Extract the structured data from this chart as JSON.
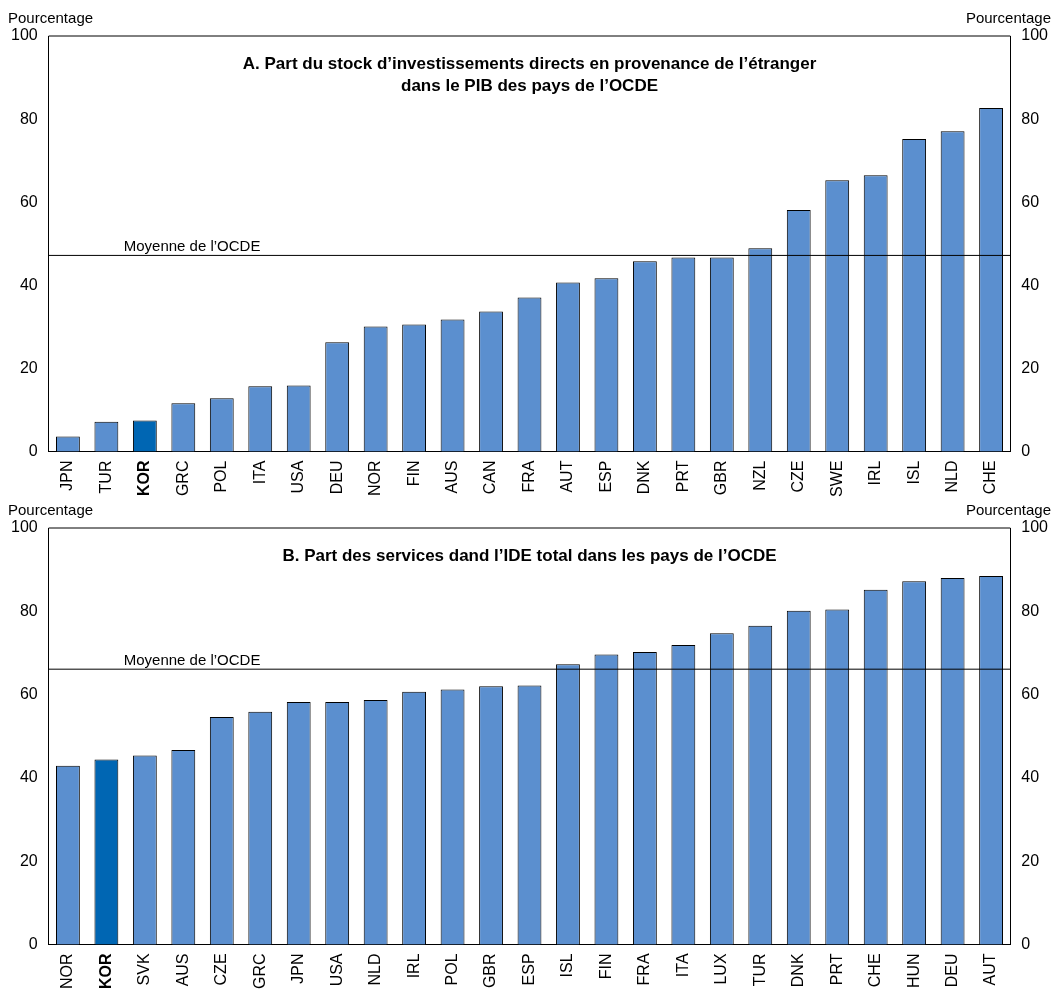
{
  "chart_data": [
    {
      "type": "bar",
      "title": "A. Part du stock d’investissements directs en provenance de l’étranger dans le PIB des pays de l’OCDE",
      "ylabel": "Pourcentage",
      "y2label": "Pourcentage",
      "categories": [
        "JPN",
        "TUR",
        "KOR",
        "GRC",
        "POL",
        "ITA",
        "USA",
        "DEU",
        "NOR",
        "FIN",
        "AUS",
        "CAN",
        "FRA",
        "AUT",
        "ESP",
        "DNK",
        "PRT",
        "GBR",
        "NZL",
        "CZE",
        "SWE",
        "IRL",
        "ISL",
        "NLD",
        "CHE"
      ],
      "values": [
        3.6,
        7.2,
        7.5,
        11.6,
        12.8,
        15.7,
        15.9,
        26.3,
        30.1,
        30.6,
        31.8,
        33.7,
        37.1,
        40.7,
        41.7,
        45.8,
        46.7,
        46.7,
        48.9,
        58.1,
        65.3,
        66.5,
        75.2,
        77.1,
        82.7
      ],
      "colors": [
        "#5b8fcf",
        "#5b8fcf",
        "#0066b3",
        "#5b8fcf",
        "#5b8fcf",
        "#5b8fcf",
        "#5b8fcf",
        "#5b8fcf",
        "#5b8fcf",
        "#5b8fcf",
        "#5b8fcf",
        "#5b8fcf",
        "#5b8fcf",
        "#5b8fcf",
        "#5b8fcf",
        "#5b8fcf",
        "#5b8fcf",
        "#5b8fcf",
        "#5b8fcf",
        "#5b8fcf",
        "#5b8fcf",
        "#5b8fcf",
        "#5b8fcf",
        "#5b8fcf",
        "#5b8fcf"
      ],
      "ylim": [
        0,
        100
      ],
      "yticks": [
        0,
        20,
        40,
        60,
        80,
        100
      ],
      "y2lim": [
        0,
        100
      ],
      "y2ticks": [
        0,
        20,
        40,
        60,
        80,
        100
      ],
      "ref_lines": [
        {
          "axis": "y",
          "value": 47.2,
          "label": "Moyenne de l’OCDE",
          "color": "#000000"
        }
      ]
    },
    {
      "type": "bar",
      "title": "B. Part des services dand l’IDE total dans les pays de l’OCDE",
      "ylabel": "Pourcentage",
      "y2label": "Pourcentage",
      "categories": [
        "NOR",
        "KOR",
        "SVK",
        "AUS",
        "CZE",
        "GRC",
        "JPN",
        "USA",
        "NLD",
        "IRL",
        "POL",
        "GBR",
        "ESP",
        "ISL",
        "FIN",
        "FRA",
        "ITA",
        "LUX",
        "TUR",
        "DNK",
        "PRT",
        "CHE",
        "HUN",
        "DEU",
        "AUT"
      ],
      "values": [
        42.9,
        44.4,
        45.4,
        46.7,
        54.6,
        55.9,
        58.2,
        58.2,
        58.7,
        60.7,
        61.2,
        62.0,
        62.2,
        67.3,
        69.6,
        70.2,
        71.9,
        74.7,
        76.5,
        80.1,
        80.4,
        85.2,
        87.2,
        88.0,
        88.5
      ],
      "colors": [
        "#5b8fcf",
        "#0066b3",
        "#5b8fcf",
        "#5b8fcf",
        "#5b8fcf",
        "#5b8fcf",
        "#5b8fcf",
        "#5b8fcf",
        "#5b8fcf",
        "#5b8fcf",
        "#5b8fcf",
        "#5b8fcf",
        "#5b8fcf",
        "#5b8fcf",
        "#5b8fcf",
        "#5b8fcf",
        "#5b8fcf",
        "#5b8fcf",
        "#5b8fcf",
        "#5b8fcf",
        "#5b8fcf",
        "#5b8fcf",
        "#5b8fcf",
        "#5b8fcf",
        "#5b8fcf"
      ],
      "ylim": [
        0,
        100
      ],
      "yticks": [
        0,
        20,
        40,
        60,
        80,
        100
      ],
      "y2lim": [
        0,
        100
      ],
      "y2ticks": [
        0,
        20,
        40,
        60,
        80,
        100
      ],
      "ref_lines": [
        {
          "axis": "y",
          "value": 66.1,
          "label": "Moyenne de l’OCDE",
          "color": "#000000"
        }
      ]
    }
  ]
}
